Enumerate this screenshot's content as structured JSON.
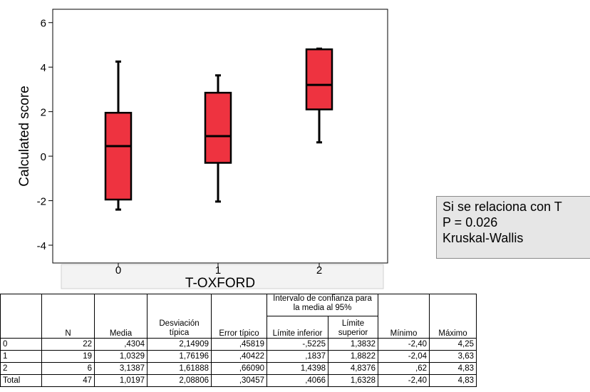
{
  "chart_data": {
    "type": "boxplot",
    "xlabel": "T-OXFORD",
    "ylabel": "Calculated score",
    "ylim": [
      -4.8,
      6.6
    ],
    "yticks": [
      -4,
      -2,
      0,
      2,
      4,
      6
    ],
    "categories": [
      "0",
      "1",
      "2"
    ],
    "boxes": [
      {
        "category": "0",
        "whisker_low": -2.4,
        "q1": -1.95,
        "median": 0.45,
        "q3": 1.95,
        "whisker_high": 4.25
      },
      {
        "category": "1",
        "whisker_low": -2.04,
        "q1": -0.3,
        "median": 0.9,
        "q3": 2.85,
        "whisker_high": 3.63
      },
      {
        "category": "2",
        "whisker_low": 0.62,
        "q1": 2.1,
        "median": 3.2,
        "q3": 4.8,
        "whisker_high": 4.83
      }
    ],
    "box_color": "#ee3340",
    "grid": false
  },
  "note": {
    "lines": [
      "Si se relaciona con T",
      "P = 0.026",
      "Kruskal-Wallis"
    ]
  },
  "table": {
    "headers": {
      "n": "N",
      "media": "Media",
      "desviacion": "Desviación típica",
      "error": "Error típico",
      "intervalo": "Intervalo de confianza para la media al 95%",
      "limite_inferior": "Límite inferior",
      "limite_superior": "Límite superior",
      "minimo": "Mínimo",
      "maximo": "Máximo"
    },
    "rows": [
      {
        "label": "0",
        "n": "22",
        "media": ",4304",
        "desviacion": "2,14909",
        "error": ",45819",
        "li": "-,5225",
        "ls": "1,3832",
        "min": "-2,40",
        "max": "4,25"
      },
      {
        "label": "1",
        "n": "19",
        "media": "1,0329",
        "desviacion": "1,76196",
        "error": ",40422",
        "li": ",1837",
        "ls": "1,8822",
        "min": "-2,04",
        "max": "3,63"
      },
      {
        "label": "2",
        "n": "6",
        "media": "3,1387",
        "desviacion": "1,61888",
        "error": ",66090",
        "li": "1,4398",
        "ls": "4,8376",
        "min": ",62",
        "max": "4,83"
      },
      {
        "label": "Total",
        "n": "47",
        "media": "1,0197",
        "desviacion": "2,08806",
        "error": ",30457",
        "li": ",4066",
        "ls": "1,6328",
        "min": "-2,40",
        "max": "4,83"
      }
    ]
  }
}
